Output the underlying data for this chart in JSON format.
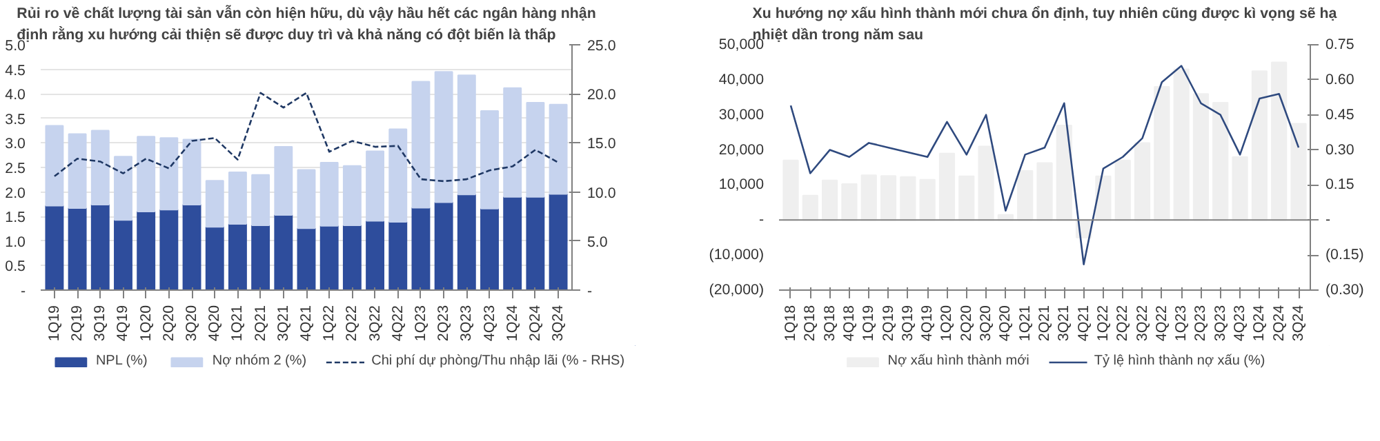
{
  "chart_data": [
    {
      "type": "bar",
      "title": "Rủi ro về chất lượng tài sản vẫn còn hiện hữu, dù vậy hầu hết các ngân hàng nhận\nđịnh rằng xu hướng cải thiện sẽ được duy trì và khả năng có đột biến là thấp",
      "categories": [
        "1Q19",
        "2Q19",
        "3Q19",
        "4Q19",
        "1Q20",
        "2Q20",
        "3Q20",
        "4Q20",
        "1Q21",
        "2Q21",
        "3Q21",
        "4Q21",
        "1Q22",
        "2Q22",
        "3Q22",
        "4Q22",
        "1Q23",
        "2Q23",
        "3Q23",
        "4Q23",
        "1Q24",
        "2Q24",
        "3Q24"
      ],
      "stacked": true,
      "grid": "y",
      "legend": "bottom",
      "ylim": [
        0,
        5
      ],
      "yticks": [
        {
          "value": 0,
          "label": "-"
        },
        0.5,
        {
          "value": 1,
          "label": "1.0"
        },
        1.5,
        {
          "value": 2,
          "label": "2.0"
        },
        2.5,
        {
          "value": 3,
          "label": "3.0"
        },
        3.5,
        {
          "value": 4,
          "label": "4.0"
        },
        4.5,
        {
          "value": 5,
          "label": "5.0"
        }
      ],
      "y2lim": [
        0,
        25
      ],
      "y2ticks": [
        {
          "value": 0,
          "label": "-"
        },
        {
          "value": 5,
          "label": "5.0"
        },
        {
          "value": 10,
          "label": "10.0"
        },
        {
          "value": 15,
          "label": "15.0"
        },
        {
          "value": 20,
          "label": "20.0"
        },
        {
          "value": 25,
          "label": "25.0"
        }
      ],
      "series": [
        {
          "name": "NPL (%)",
          "color": "#2e4d9c",
          "values": [
            1.72,
            1.67,
            1.74,
            1.43,
            1.6,
            1.64,
            1.74,
            1.29,
            1.35,
            1.32,
            1.53,
            1.26,
            1.31,
            1.32,
            1.41,
            1.39,
            1.68,
            1.79,
            1.95,
            1.66,
            1.9,
            1.9,
            1.96
          ]
        },
        {
          "name": "Nợ nhóm 2 (%)",
          "color": "#c6d3ee",
          "values": [
            1.63,
            1.51,
            1.51,
            1.29,
            1.53,
            1.46,
            1.33,
            0.94,
            1.05,
            1.03,
            1.39,
            1.19,
            1.29,
            1.21,
            1.42,
            1.89,
            2.57,
            2.66,
            2.43,
            1.99,
            2.22,
            1.92,
            1.82
          ]
        },
        {
          "name": "Chi phí dự phòng/Thu nhập lãi (% - RHS)",
          "type": "line",
          "axis": "y2",
          "line_style": "dashed",
          "color": "#1f3864",
          "values": [
            11.6,
            13.4,
            13.1,
            11.9,
            13.4,
            12.4,
            15.2,
            15.5,
            13.3,
            20.1,
            18.6,
            20.1,
            14.1,
            15.2,
            14.6,
            14.7,
            11.3,
            11.1,
            11.3,
            12.2,
            12.6,
            14.3,
            13.0
          ]
        }
      ]
    },
    {
      "type": "bar",
      "title": "Xu hướng nợ xấu hình thành mới chưa ổn định, tuy nhiên cũng được kì vọng sẽ hạ\nnhiệt dần trong năm sau",
      "categories": [
        "1Q18",
        "2Q18",
        "3Q18",
        "4Q18",
        "1Q19",
        "2Q19",
        "3Q19",
        "4Q19",
        "1Q20",
        "2Q20",
        "3Q20",
        "4Q20",
        "1Q21",
        "2Q21",
        "3Q21",
        "4Q21",
        "1Q22",
        "2Q22",
        "3Q22",
        "4Q22",
        "1Q23",
        "2Q23",
        "3Q23",
        "4Q23",
        "1Q24",
        "2Q24",
        "3Q24"
      ],
      "legend": "bottom",
      "ylim": [
        -20000,
        50000
      ],
      "yticks": [
        {
          "value": -20000,
          "label": "(20,000)"
        },
        {
          "value": -10000,
          "label": "(10,000)"
        },
        {
          "value": 0,
          "label": "-"
        },
        {
          "value": 10000,
          "label": "10,000"
        },
        {
          "value": 20000,
          "label": "20,000"
        },
        {
          "value": 30000,
          "label": "30,000"
        },
        {
          "value": 40000,
          "label": "40,000"
        },
        {
          "value": 50000,
          "label": "50,000"
        }
      ],
      "y2lim": [
        -0.3,
        0.75
      ],
      "y2ticks": [
        {
          "value": -0.3,
          "label": "(0.30)"
        },
        {
          "value": -0.15,
          "label": "(0.15)"
        },
        {
          "value": 0,
          "label": "-"
        },
        0.15,
        {
          "value": 0.3,
          "label": "0.30"
        },
        0.45,
        {
          "value": 0.6,
          "label": "0.60"
        },
        0.75
      ],
      "series": [
        {
          "name": "Nợ xấu hình thành mới",
          "color": "#efefef",
          "values": [
            17000,
            7000,
            11300,
            10300,
            12800,
            12600,
            12300,
            11500,
            19000,
            12500,
            21000,
            1500,
            14000,
            16300,
            27000,
            -5000,
            12500,
            17000,
            22000,
            38000,
            43000,
            36000,
            33500,
            18000,
            42500,
            45000,
            27500
          ]
        },
        {
          "name": "Tỷ lệ hình thành nợ xấu (%)",
          "type": "line",
          "axis": "y2",
          "line_style": "solid",
          "color": "#2f4a7f",
          "values": [
            0.49,
            0.2,
            0.3,
            0.27,
            0.33,
            0.31,
            0.29,
            0.27,
            0.42,
            0.28,
            0.45,
            0.04,
            0.28,
            0.31,
            0.5,
            -0.19,
            0.22,
            0.27,
            0.35,
            0.59,
            0.66,
            0.5,
            0.45,
            0.28,
            0.52,
            0.54,
            0.31
          ]
        }
      ]
    }
  ]
}
